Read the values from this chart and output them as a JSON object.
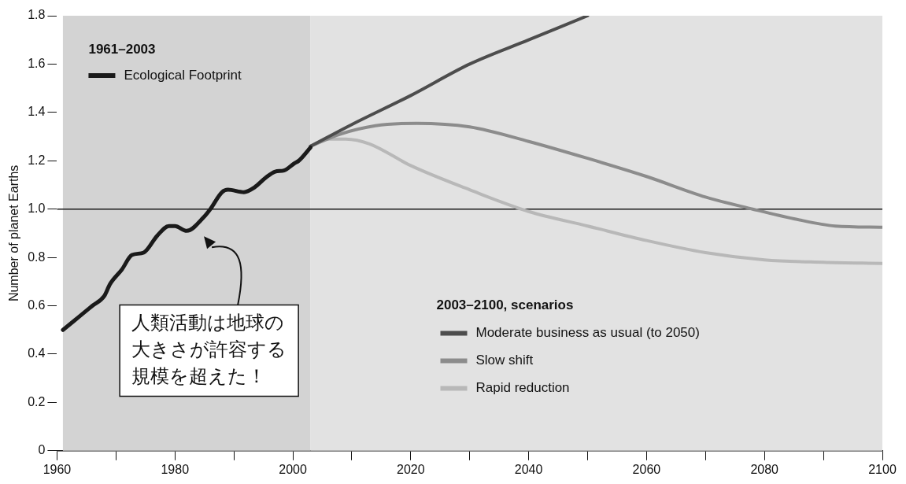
{
  "chart_data": {
    "type": "line",
    "ylabel": "Number of planet Earths",
    "legend_title": "1961–2003",
    "legend": "top left",
    "xlim": [
      1960,
      2100
    ],
    "ylim": [
      0,
      1.8
    ],
    "xticks": [
      1960,
      {
        "value": 1970,
        "label": null
      },
      1980,
      {
        "value": 1990,
        "label": null
      },
      2000,
      {
        "value": 2010,
        "label": null
      },
      2020,
      {
        "value": 2030,
        "label": null
      },
      2040,
      {
        "value": 2050,
        "label": null
      },
      2060,
      {
        "value": 2070,
        "label": null
      },
      2080,
      {
        "value": 2090,
        "label": null
      },
      2100
    ],
    "yticks": [
      0,
      0.2,
      0.4,
      0.6,
      0.8,
      {
        "value": 1,
        "label": "1.0"
      },
      1.2,
      1.4,
      1.6,
      1.8
    ],
    "grid": false,
    "line_style": "solid",
    "marker": "none",
    "bands": [
      {
        "axis": "x",
        "from": 1961,
        "to": 2003,
        "color": "#d3d3d3"
      },
      {
        "axis": "x",
        "from": 2003,
        "to": 2100,
        "color": "#e2e2e2"
      }
    ],
    "ref_lines": [
      {
        "axis": "y",
        "value": 1,
        "color": "#1a1a1a"
      }
    ],
    "annotations": [
      "2003–2100, scenarios",
      "人類活動は地球の大きさが許容する規模を超えた！"
    ],
    "series": [
      {
        "name": "Ecological Footprint",
        "color": "#1a1a1a",
        "x": [
          1961,
          1963,
          1965,
          1966,
          1968,
          1969,
          1971,
          1972.7,
          1974.7,
          1977,
          1979,
          1980,
          1982,
          1985,
          1986,
          1988,
          1989,
          1991.7,
          1993.5,
          1995.4,
          1997,
          1998.5,
          2000.3,
          2001,
          2003
        ],
        "values": [
          0.5,
          0.54,
          0.58,
          0.6,
          0.64,
          0.69,
          0.75,
          0.81,
          0.82,
          0.89,
          0.93,
          0.93,
          0.91,
          0.97,
          1.0,
          1.07,
          1.08,
          1.07,
          1.09,
          1.13,
          1.155,
          1.16,
          1.19,
          1.2,
          1.255
        ]
      },
      {
        "name": "Moderate business as usual (to 2050)",
        "color": "#4d4d4d",
        "x": [
          2003,
          2010,
          2020,
          2030,
          2040,
          2050
        ],
        "values": [
          1.26,
          1.35,
          1.47,
          1.6,
          1.7,
          1.8
        ]
      },
      {
        "name": "Slow shift",
        "color": "#8c8c8c",
        "x": [
          2003,
          2008,
          2014,
          2021,
          2030,
          2040,
          2050,
          2060,
          2070,
          2078,
          2085,
          2092,
          2100
        ],
        "values": [
          1.26,
          1.31,
          1.345,
          1.355,
          1.34,
          1.28,
          1.21,
          1.135,
          1.05,
          1.0,
          0.96,
          0.93,
          0.925
        ]
      },
      {
        "name": "Rapid reduction",
        "color": "#b8b8b8",
        "x": [
          2003,
          2006,
          2009,
          2013,
          2020,
          2030,
          2040,
          2050,
          2060,
          2070,
          2080,
          2090,
          2100
        ],
        "values": [
          1.26,
          1.29,
          1.29,
          1.27,
          1.18,
          1.08,
          0.99,
          0.93,
          0.87,
          0.82,
          0.79,
          0.78,
          0.775
        ]
      }
    ]
  }
}
